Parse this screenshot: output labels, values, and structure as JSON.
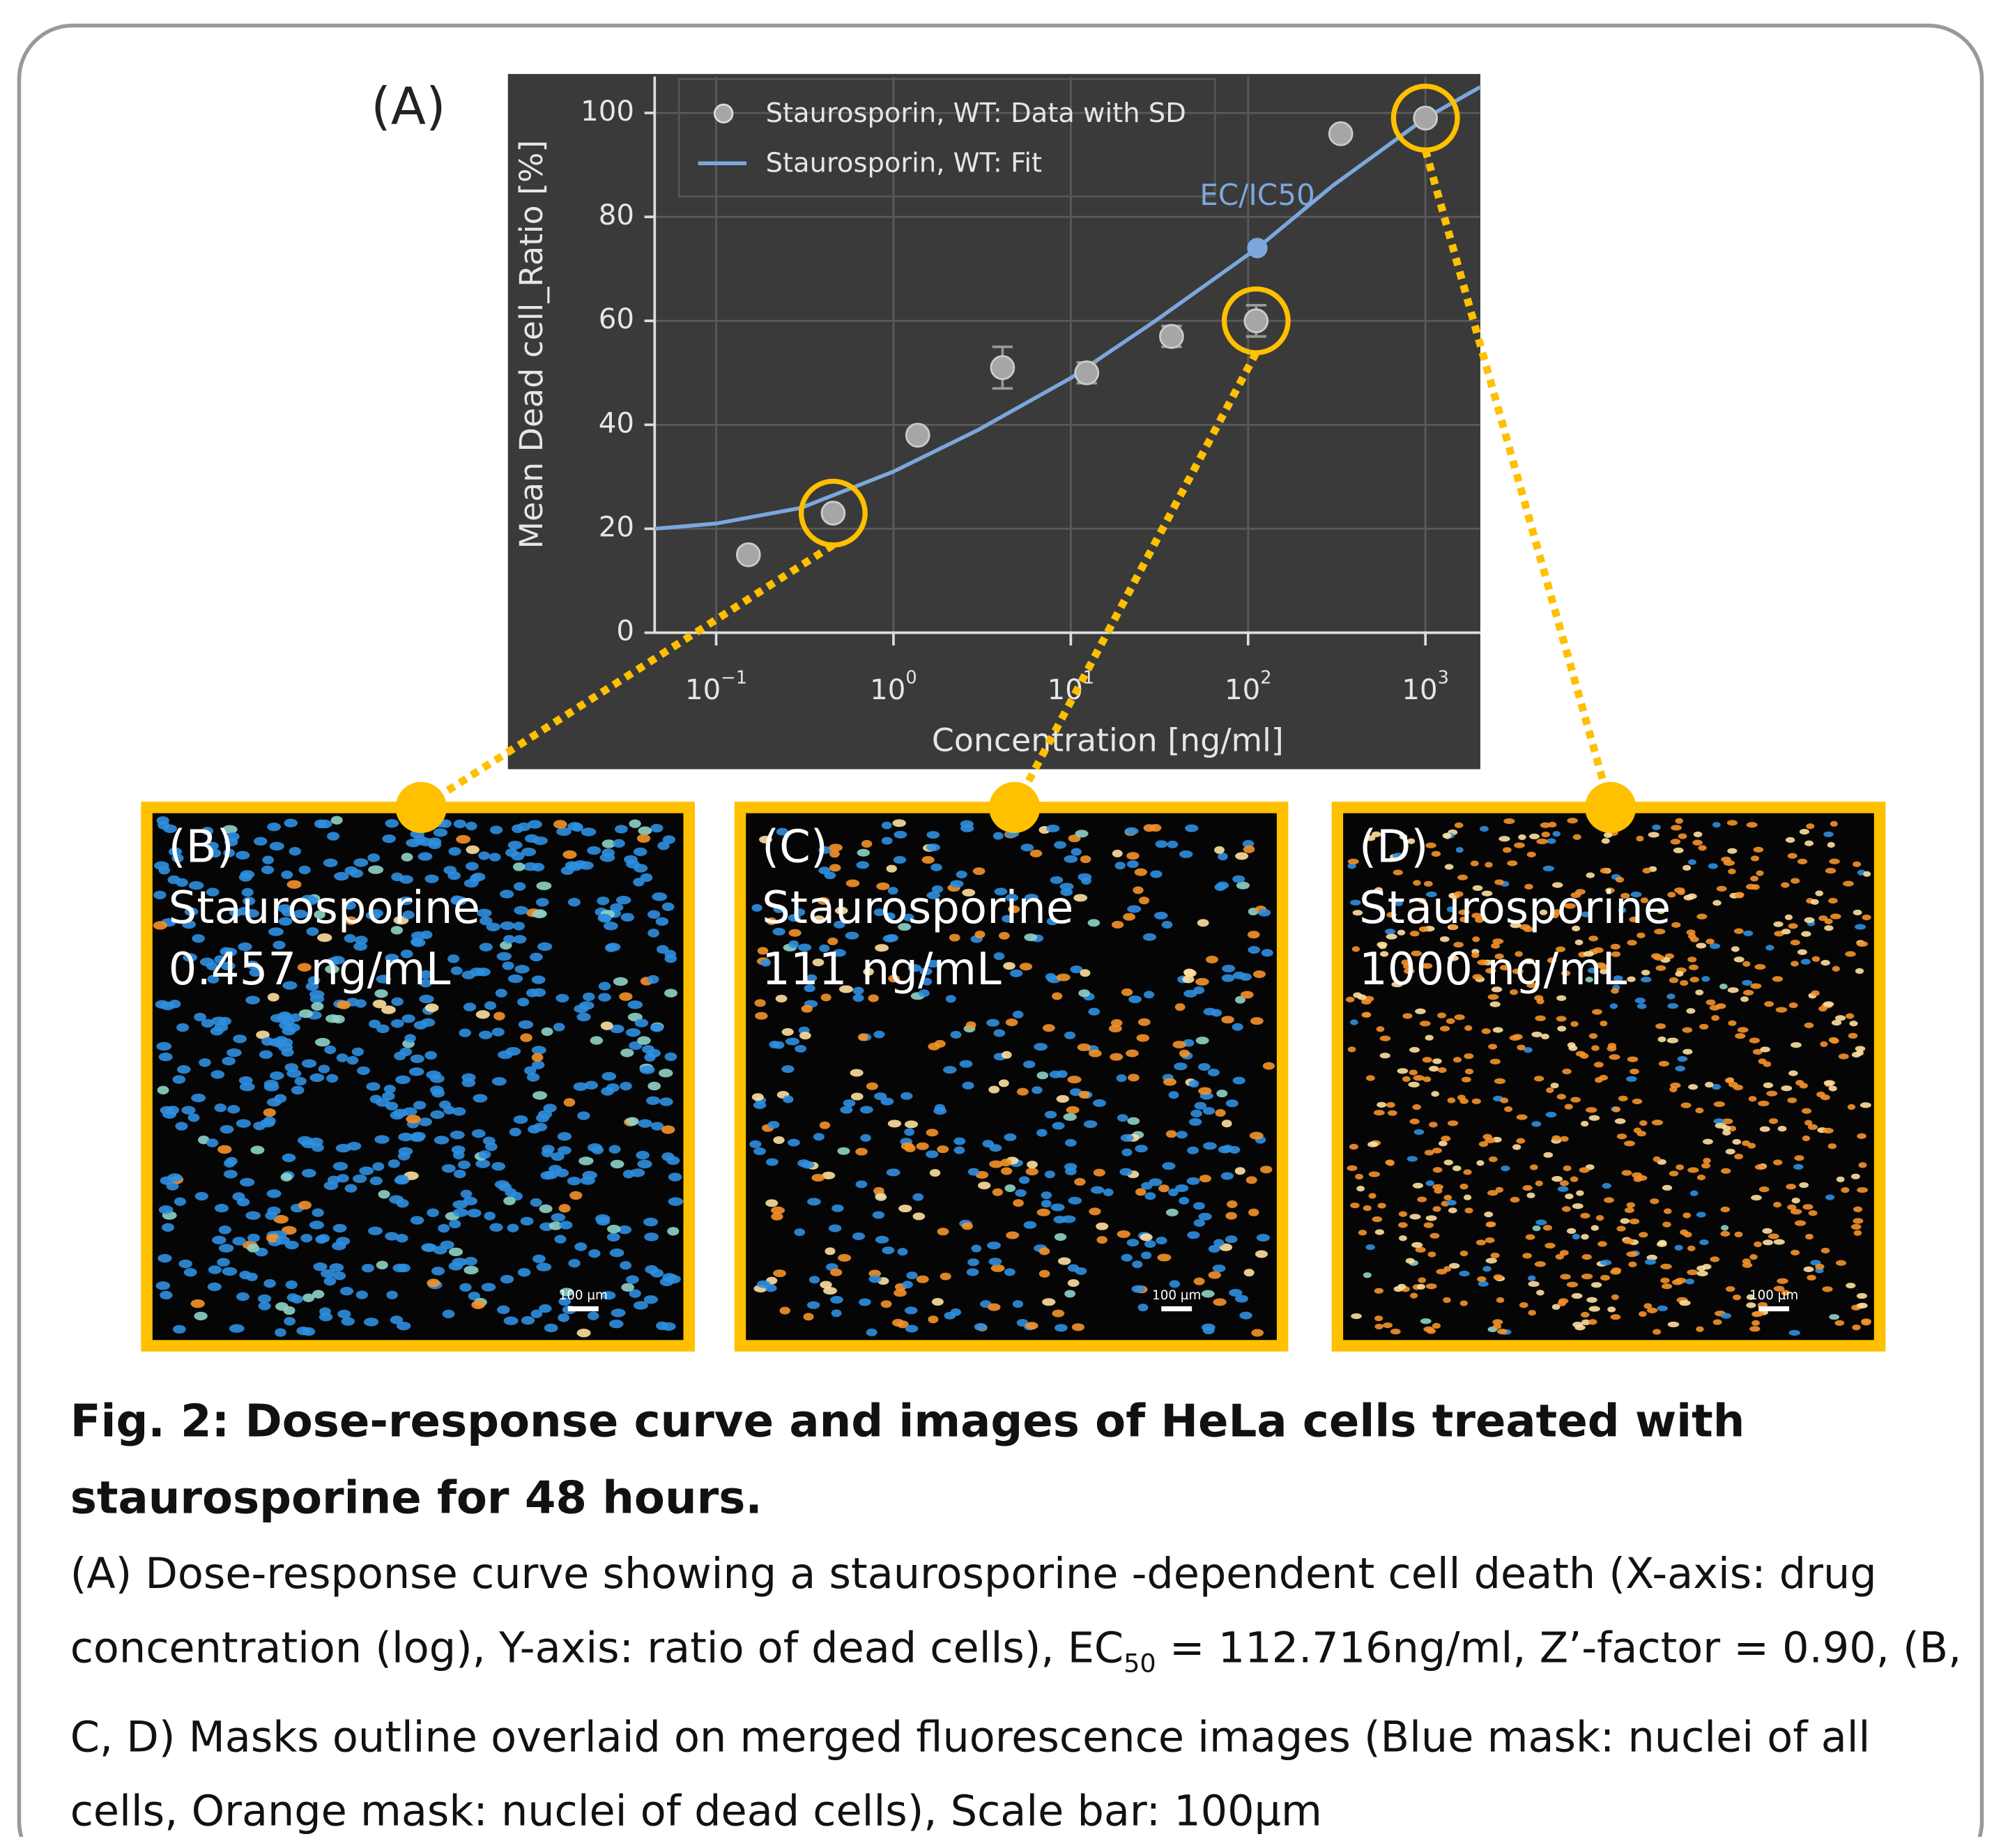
{
  "panel_label": "(A)",
  "chart_data": {
    "type": "scatter",
    "x_label": "Concentration [ng/ml]",
    "y_label": "Mean Dead cell_Ratio [%]",
    "log_x": true,
    "grid": true,
    "background": "#3a3a3a",
    "legend": "upper left",
    "xlim": [
      0.045,
      2040
    ],
    "ylim": [
      0,
      107
    ],
    "xticks": [
      {
        "value": 0.1,
        "label": "10",
        "exponent": "−1"
      },
      {
        "value": 1,
        "label": "10",
        "exponent": "0"
      },
      {
        "value": 10,
        "label": "10",
        "exponent": "1"
      },
      {
        "value": 100,
        "label": "10",
        "exponent": "2"
      },
      {
        "value": 1000,
        "label": "10",
        "exponent": "3"
      }
    ],
    "yticks": [
      0,
      20,
      40,
      60,
      80,
      100
    ],
    "series": [
      {
        "name": "Staurosporin, WT: Data with SD",
        "color": "#a6a6a6",
        "x": [
          0.152,
          0.457,
          1.37,
          4.12,
          12.3,
          37,
          111,
          333,
          1000
        ],
        "values": [
          15,
          23,
          38,
          51,
          50,
          57,
          60,
          96,
          99
        ],
        "errors": [
          1,
          1,
          1,
          4,
          2,
          2,
          3,
          1,
          1
        ]
      },
      {
        "name": "Staurosporin, WT: Fit",
        "type": "line",
        "color": "#7ba7dd",
        "x": [
          0.045,
          0.1,
          0.3,
          1,
          3,
          10,
          30,
          112.716,
          300,
          1000,
          2040
        ],
        "values": [
          20,
          21,
          24,
          31,
          39,
          49,
          60,
          74,
          86,
          99,
          105
        ]
      }
    ],
    "annotation": {
      "text": "EC/IC50",
      "x": 112.716,
      "y": 74,
      "color": "#7ba7dd"
    },
    "highlight": {
      "indices": [
        1,
        6,
        8
      ],
      "color": "#ffc000"
    }
  },
  "panels": [
    {
      "label": "(B)",
      "drug": "Staurosporine",
      "dose": "0.457 ng/mL",
      "scale_bar": "100 µm"
    },
    {
      "label": "(C)",
      "drug": "Staurosporine",
      "dose": "111 ng/mL",
      "scale_bar": "100 µm"
    },
    {
      "label": "(D)",
      "drug": "Staurosporine",
      "dose": "1000 ng/mL",
      "scale_bar": "100 µm"
    }
  ],
  "caption": {
    "title": "Fig. 2: Dose-response curve and images of HeLa cells treated with staurosporine for 48 hours.",
    "body_start": "(A) Dose-response curve showing a staurosporine -dependent cell death (X-axis: drug concentration (log), Y-axis: ratio of dead cells), EC",
    "ec_subscript": "50",
    "body_end": " = 112.716ng/ml, Z’-factor = 0.90, (B, C, D) Masks outline overlaid on merged fluorescence images (Blue mask: nuclei of all cells, Orange mask: nuclei of dead cells), Scale bar: 100µm"
  }
}
